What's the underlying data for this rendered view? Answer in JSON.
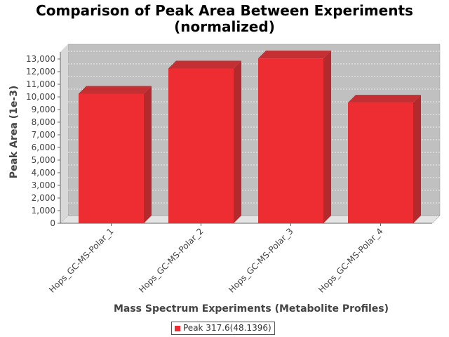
{
  "chart_data": {
    "type": "bar",
    "title": "Comparison of Peak Area Between Experiments",
    "subtitle": "(normalized)",
    "xlabel": "Mass Spectrum Experiments (Metabolite Profiles)",
    "ylabel": "Peak Area (1e-3)",
    "categories": [
      "Hops_GC-MS-Polar_1",
      "Hops_GC-MS-Polar_2",
      "Hops_GC-MS-Polar_3",
      "Hops_GC-MS-Polar_4"
    ],
    "series": [
      {
        "name": "Peak 317.6(48.1396)",
        "values": [
          10250,
          12250,
          13050,
          9550
        ],
        "color": "#ee2d32"
      }
    ],
    "ylim": [
      0,
      13000
    ],
    "yticks": [
      "0",
      "1,000",
      "2,000",
      "3,000",
      "4,000",
      "5,000",
      "6,000",
      "7,000",
      "8,000",
      "9,000",
      "10,000",
      "11,000",
      "12,000",
      "13,000"
    ],
    "grid": true,
    "legend_position": "bottom"
  }
}
